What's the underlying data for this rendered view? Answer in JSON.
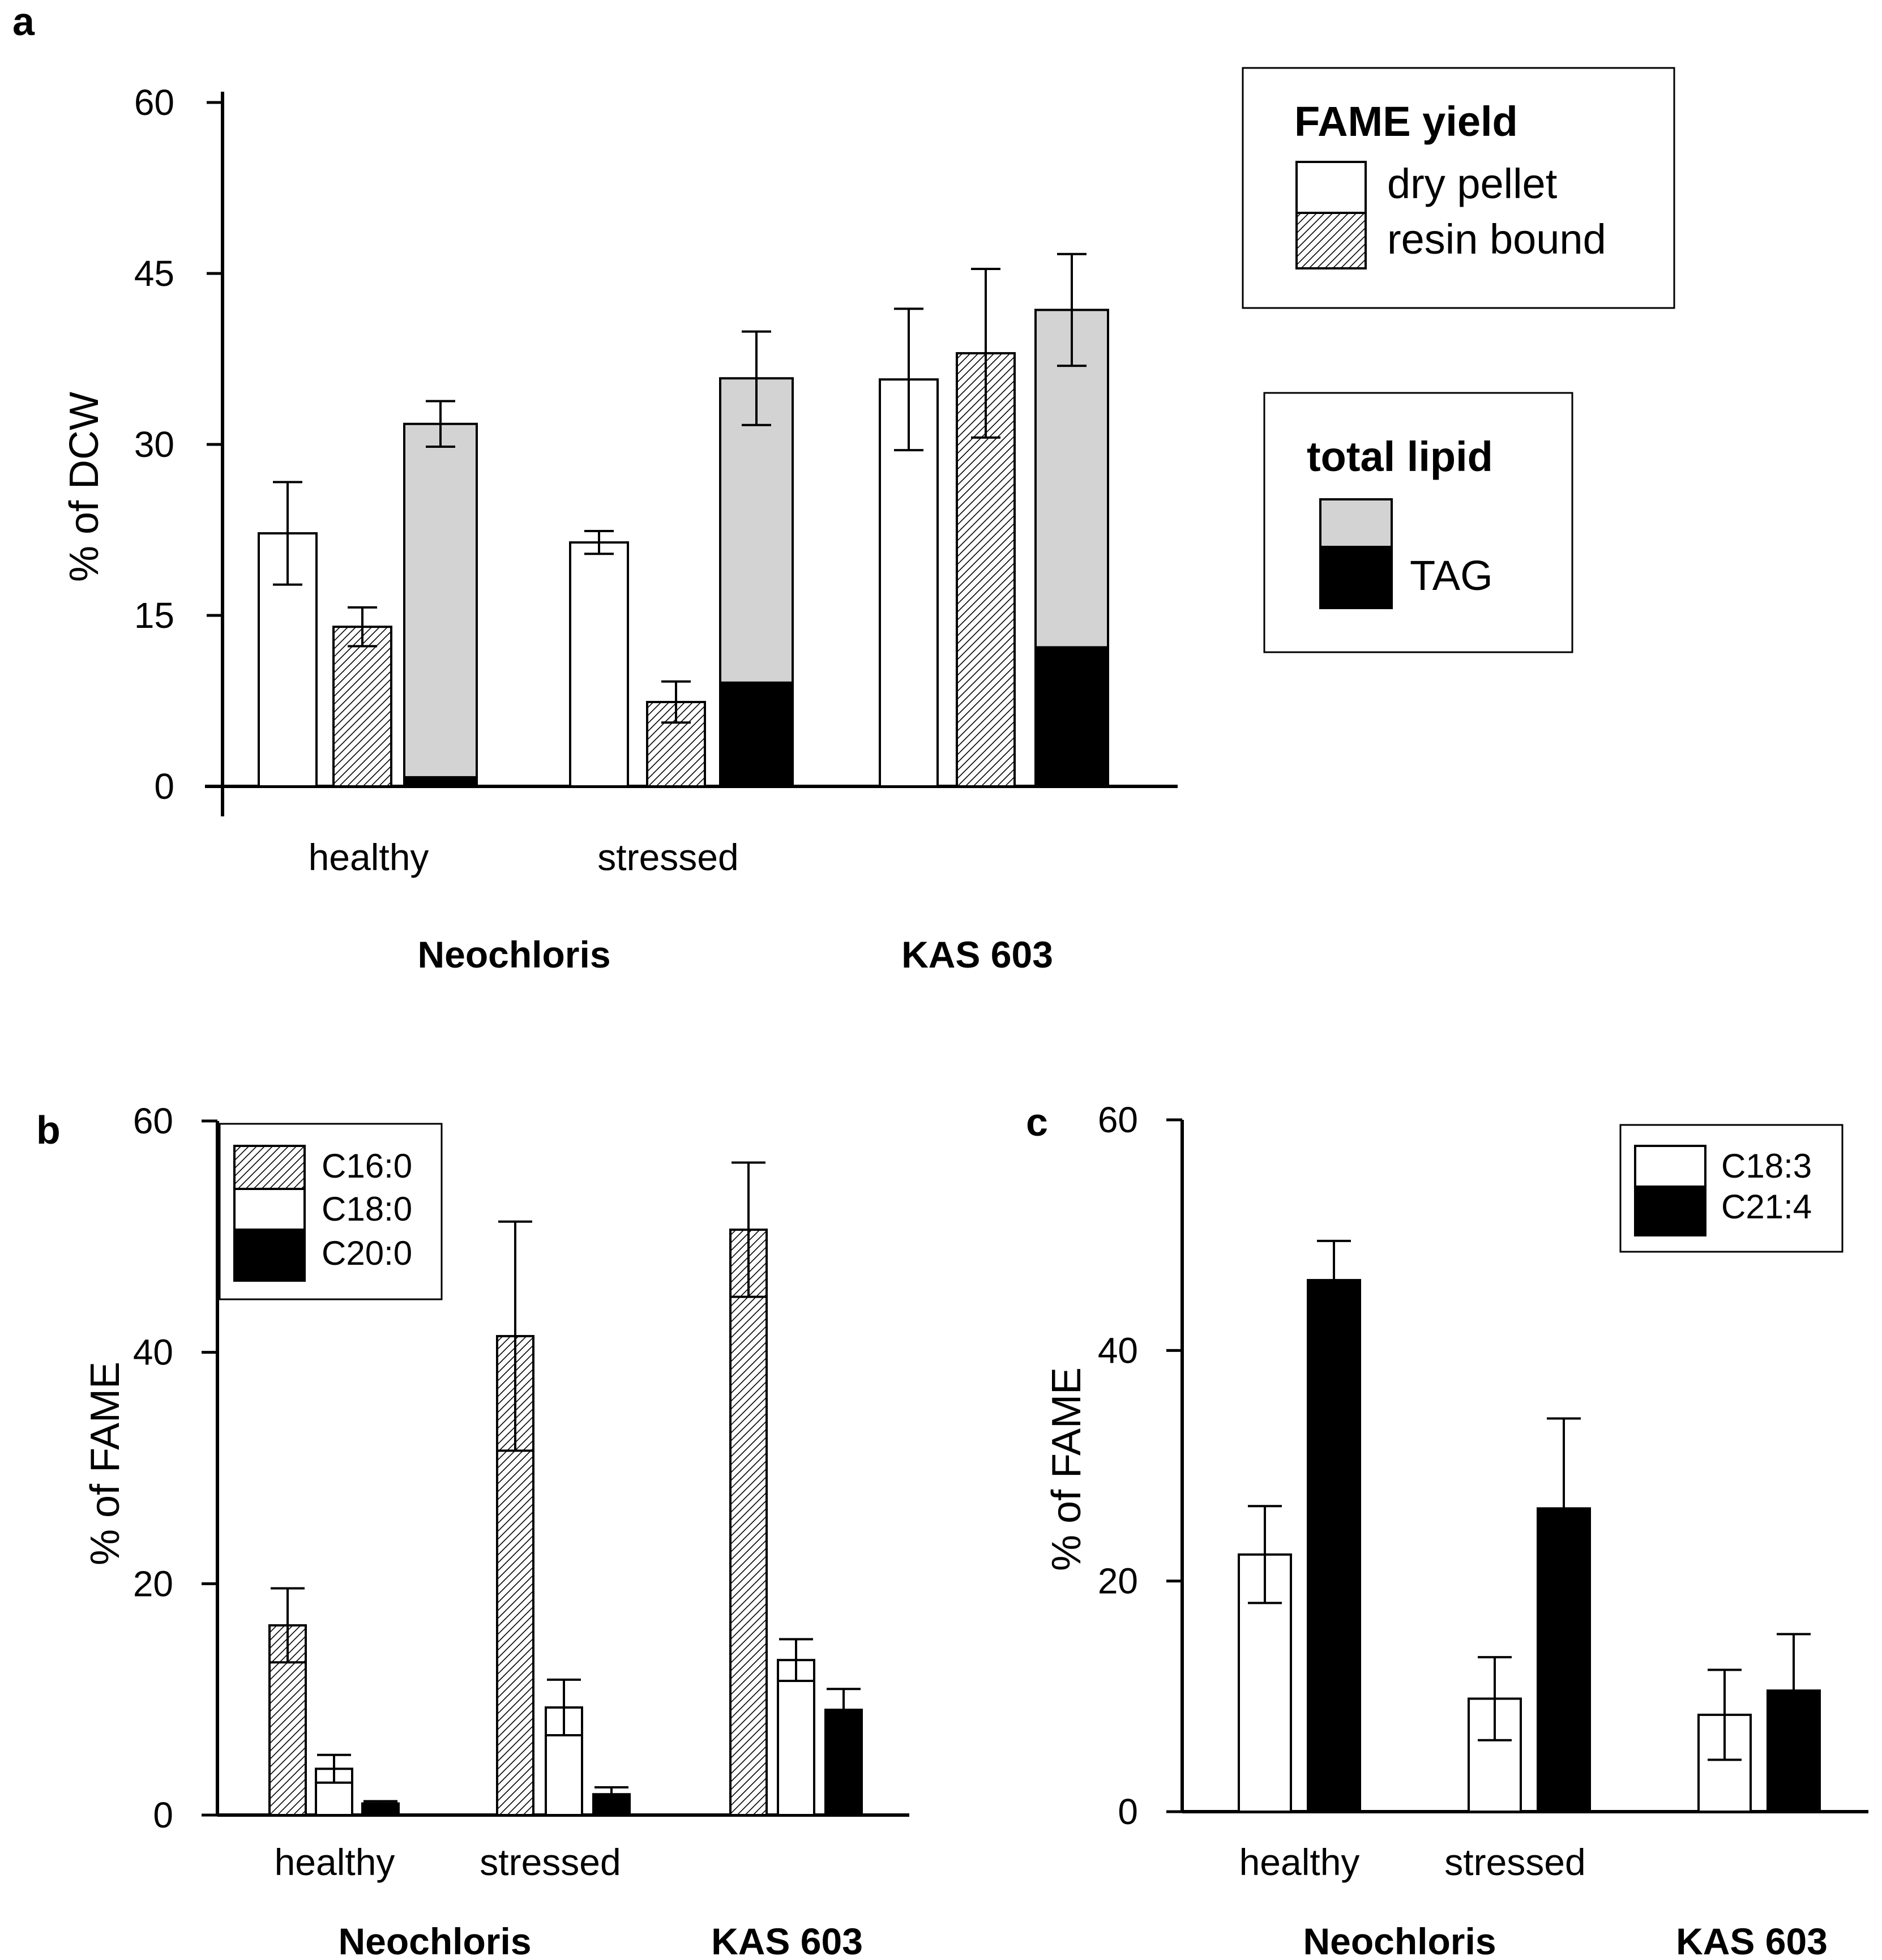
{
  "colors": {
    "white": "#ffffff",
    "gray": "#d3d3d3",
    "black": "#000000",
    "hatch": "hatched"
  },
  "panels": {
    "a": "a",
    "b": "b",
    "c": "c"
  },
  "chart_data": [
    {
      "panel": "a",
      "type": "bar",
      "ylabel": "% of DCW",
      "ylim": [
        0,
        60
      ],
      "yticks": [
        "0",
        "15",
        "30",
        "45",
        "60"
      ],
      "categories": [
        "healthy",
        "stressed",
        ""
      ],
      "groups": [
        "Neochloris",
        "KAS 603"
      ],
      "series": [
        {
          "name": "dry pellet",
          "values": [
            22.2,
            21.4,
            35.7
          ],
          "errors": [
            4.5,
            1.0,
            6.2
          ]
        },
        {
          "name": "resin bound",
          "values": [
            14.0,
            7.4,
            38.0
          ],
          "errors": [
            1.7,
            1.8,
            7.4
          ]
        },
        {
          "name": "total lipid",
          "values": [
            31.8,
            35.8,
            41.8
          ],
          "errors": [
            2.0,
            4.1,
            4.9
          ]
        },
        {
          "name": "TAG",
          "values": [
            0.8,
            9.1,
            12.2
          ]
        }
      ],
      "legend_fame": {
        "title": "FAME yield",
        "items": [
          "dry pellet",
          "resin bound"
        ]
      },
      "legend_lipid": {
        "title": "total lipid",
        "items": [
          "TAG"
        ]
      }
    },
    {
      "panel": "b",
      "type": "bar",
      "ylabel": "% of FAME",
      "ylim": [
        0,
        60
      ],
      "yticks": [
        "0",
        "20",
        "40",
        "60"
      ],
      "categories": [
        "healthy",
        "stressed",
        ""
      ],
      "groups": [
        "Neochloris",
        "KAS 603"
      ],
      "series": [
        {
          "name": "C16:0",
          "values": [
            16.4,
            41.4,
            50.6
          ],
          "errors": [
            3.2,
            9.9,
            5.8
          ]
        },
        {
          "name": "C18:0",
          "values": [
            4.0,
            9.3,
            13.4
          ],
          "errors": [
            1.2,
            2.4,
            1.8
          ]
        },
        {
          "name": "C20:0",
          "values": [
            1.0,
            1.8,
            9.1
          ],
          "errors": [
            0.2,
            0.6,
            1.8
          ]
        }
      ]
    },
    {
      "panel": "c",
      "type": "bar",
      "ylabel": "% of FAME",
      "ylim": [
        0,
        60
      ],
      "yticks": [
        "0",
        "20",
        "40",
        "60"
      ],
      "categories": [
        "healthy",
        "stressed",
        ""
      ],
      "groups": [
        "Neochloris",
        "KAS 603"
      ],
      "series": [
        {
          "name": "C18:3",
          "values": [
            22.3,
            9.8,
            8.4
          ],
          "errors": [
            4.2,
            3.6,
            3.9
          ]
        },
        {
          "name": "C21:4",
          "values": [
            46.1,
            26.3,
            10.5
          ],
          "errors": [
            3.4,
            7.8,
            4.9
          ]
        }
      ]
    }
  ]
}
